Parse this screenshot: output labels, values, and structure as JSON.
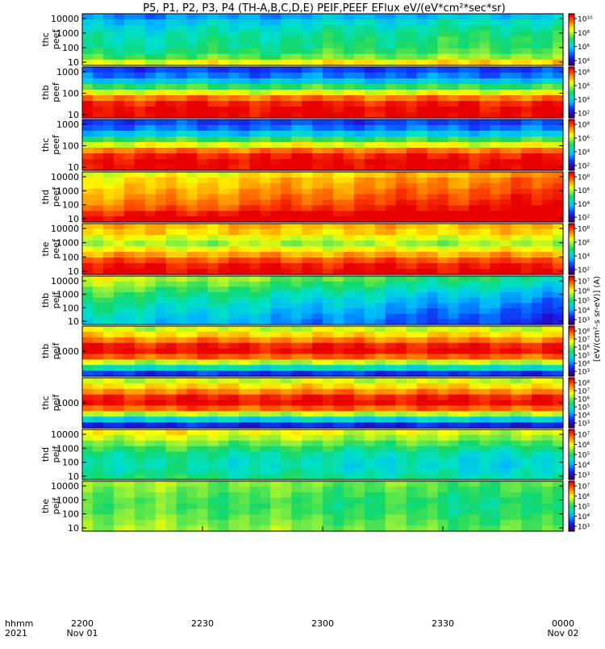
{
  "chart_data": {
    "type": "heatmap",
    "title": "P5, P1, P2, P3, P4 (TH-A,B,C,D,E) PEIF,PEEF EFlux eV/(eV*cm²*sec*sr)",
    "x_tick_labels": [
      "2200",
      "2230",
      "2300",
      "2330",
      "0000"
    ],
    "x_tick_sublabels": [
      "Nov 01",
      "",
      "",
      "",
      "Nov 02"
    ],
    "x_axis_labels": [
      "hhmm",
      "2021"
    ],
    "colorbar_label": "[eV/(cm²-s sr-eV)] (A)",
    "colorscale": [
      "#3a0060",
      "#1f10d8",
      "#0a4cff",
      "#00b4ff",
      "#00e0c8",
      "#16d866",
      "#8cef3c",
      "#ffff00",
      "#ffa800",
      "#ff4b00",
      "#e80000"
    ],
    "panels": [
      {
        "ylabel": [
          "thc",
          "peef"
        ],
        "yticks": [
          "10000",
          "1000",
          "100",
          "10"
        ],
        "cb_ticks": [
          "10¹⁰",
          "10⁸",
          "10⁶",
          "10⁴"
        ],
        "profile": [
          2.5,
          3.2,
          3.6,
          4,
          4.2,
          4.3,
          4.6,
          5.2,
          6.6
        ],
        "trend": 1.0
      },
      {
        "ylabel": [
          "thb",
          "peef"
        ],
        "yticks": [
          "1000",
          "100",
          "10"
        ],
        "cb_ticks": [
          "10⁸",
          "10⁶",
          "10⁴",
          "10²"
        ],
        "profile": [
          1.8,
          2.4,
          3.4,
          5.2,
          6.8,
          8.6,
          9.6,
          10,
          10
        ],
        "trend": 0.0
      },
      {
        "ylabel": [
          "thc",
          "peef"
        ],
        "yticks": [
          "1000",
          "100",
          "10"
        ],
        "cb_ticks": [
          "10⁸",
          "10⁶",
          "10⁴",
          "10²"
        ],
        "profile": [
          1.8,
          2.4,
          3.4,
          5.2,
          6.8,
          8.6,
          9.6,
          10,
          10
        ],
        "trend": 0.0
      },
      {
        "ylabel": [
          "thd",
          "peef"
        ],
        "yticks": [
          "10000",
          "1000",
          "100",
          "10"
        ],
        "cb_ticks": [
          "10⁸",
          "10⁶",
          "10⁴",
          "10²"
        ],
        "profile": [
          6.6,
          7.1,
          7.3,
          7.6,
          7.9,
          8.2,
          8.6,
          9.4,
          10
        ],
        "trend": 1.6
      },
      {
        "ylabel": [
          "the",
          "peef"
        ],
        "yticks": [
          "10000",
          "1000",
          "100",
          "10"
        ],
        "cb_ticks": [
          "10⁸",
          "10⁶",
          "10⁴",
          "10²"
        ],
        "profile": [
          7.8,
          7.5,
          6.8,
          6.2,
          7.0,
          8.0,
          9.0,
          9.7,
          10
        ],
        "trend": 0.0
      },
      {
        "ylabel": [
          "thb",
          "peif"
        ],
        "yticks": [
          "10000",
          "1000",
          "100",
          "10"
        ],
        "cb_ticks": [
          "10⁷",
          "10⁶",
          "10⁵",
          "10⁴",
          "10³"
        ],
        "profile": [
          6.8,
          6.3,
          5.8,
          5.3,
          4.9,
          4.6,
          4.3,
          4.0,
          3.8
        ],
        "trend": -2.4
      },
      {
        "ylabel": [
          "thb",
          "peif"
        ],
        "yticks": [
          "1000"
        ],
        "cb_ticks": [
          "10⁸",
          "10⁷",
          "10⁶",
          "10⁵",
          "10⁴",
          "10³"
        ],
        "profile": [
          6.6,
          7.4,
          8.4,
          9.6,
          9.9,
          8.8,
          6.4,
          4.0,
          1.6
        ],
        "trend": 0.0
      },
      {
        "ylabel": [
          "thc",
          "peif"
        ],
        "yticks": [
          "1000"
        ],
        "cb_ticks": [
          "10⁸",
          "10⁷",
          "10⁶",
          "10⁵",
          "10⁴",
          "10³"
        ],
        "profile": [
          6.6,
          7.4,
          8.4,
          9.6,
          9.9,
          8.8,
          6.4,
          3.6,
          1.4
        ],
        "trend": 0.0
      },
      {
        "ylabel": [
          "thd",
          "peif"
        ],
        "yticks": [
          "10000",
          "1000",
          "100",
          "10"
        ],
        "cb_ticks": [
          "10⁷",
          "10⁶",
          "10⁵",
          "10⁴",
          "10³"
        ],
        "profile": [
          7.2,
          6.7,
          6.0,
          5.3,
          4.8,
          4.5,
          4.4,
          4.6,
          5.0
        ],
        "trend": -0.8
      },
      {
        "ylabel": [
          "the",
          "peif"
        ],
        "yticks": [
          "10000",
          "1000",
          "100",
          "10"
        ],
        "cb_ticks": [
          "10⁷",
          "10⁶",
          "10⁵",
          "10⁴",
          "10³"
        ],
        "profile": [
          6.2,
          6.0,
          5.8,
          5.6,
          5.6,
          5.7,
          5.9,
          6.1,
          6.3
        ],
        "trend": -0.9
      }
    ]
  }
}
